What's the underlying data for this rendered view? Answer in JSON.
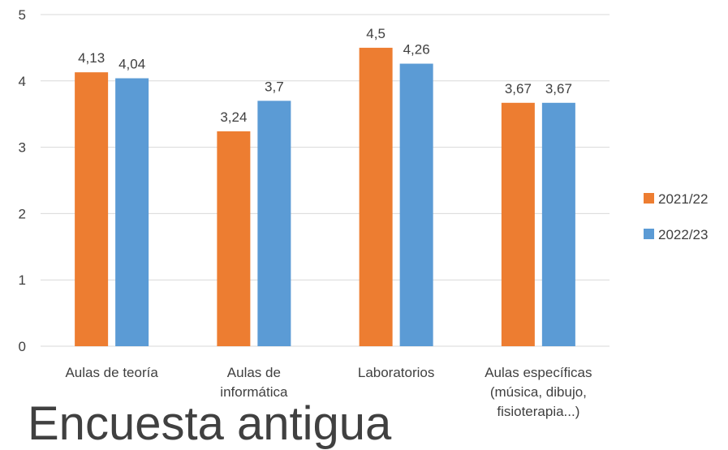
{
  "footer": {
    "text": "Encuesta antigua"
  },
  "chart_data": {
    "type": "bar",
    "title": "",
    "xlabel": "",
    "ylabel": "",
    "ylim": [
      0,
      5
    ],
    "yticks": [
      0,
      1,
      2,
      3,
      4,
      5
    ],
    "grid": true,
    "legend_position": "right",
    "categories": [
      [
        "Aulas de teoría"
      ],
      [
        "Aulas de",
        "informática"
      ],
      [
        "Laboratorios"
      ],
      [
        "Aulas específicas",
        "(música, dibujo,",
        "fisioterapia...)"
      ]
    ],
    "series": [
      {
        "name": "2021/22",
        "color": "#ED7D31",
        "values": [
          4.13,
          3.24,
          4.5,
          3.67
        ],
        "labels": [
          "4,13",
          "3,24",
          "4,5",
          "3,67"
        ]
      },
      {
        "name": "2022/23",
        "color": "#5B9BD5",
        "values": [
          4.04,
          3.7,
          4.26,
          3.67
        ],
        "labels": [
          "4,04",
          "3,7",
          "4,26",
          "3,67"
        ]
      }
    ]
  }
}
